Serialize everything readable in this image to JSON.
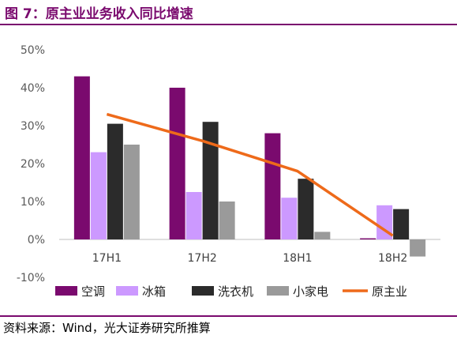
{
  "title": "图 7：原主业业务收入同比增速",
  "source": "资料来源：Wind，光大证券研究所推算",
  "colors": {
    "title": "#7a0a6e",
    "series": [
      "#7a0a6e",
      "#cc99ff",
      "#2b2b2b",
      "#9a9a9a",
      "#ee6a1a"
    ]
  },
  "chart_data": {
    "type": "bar",
    "categories": [
      "17H1",
      "17H2",
      "18H1",
      "18H2"
    ],
    "y_ticks": [
      "50%",
      "40%",
      "30%",
      "20%",
      "10%",
      "0%",
      "-10%"
    ],
    "ylim": [
      -10,
      50
    ],
    "grid": false,
    "legend_position": "bottom",
    "series": [
      {
        "name": "空调",
        "type": "bar",
        "values": [
          43,
          40,
          28,
          0.3
        ]
      },
      {
        "name": "冰箱",
        "type": "bar",
        "values": [
          23,
          12.5,
          11,
          9
        ]
      },
      {
        "name": "洗衣机",
        "type": "bar",
        "values": [
          30.5,
          31,
          16,
          8
        ]
      },
      {
        "name": "小家电",
        "type": "bar",
        "values": [
          25,
          10,
          2,
          -4.5
        ]
      },
      {
        "name": "原主业",
        "type": "line",
        "values": [
          33,
          26,
          18,
          1
        ]
      }
    ]
  }
}
